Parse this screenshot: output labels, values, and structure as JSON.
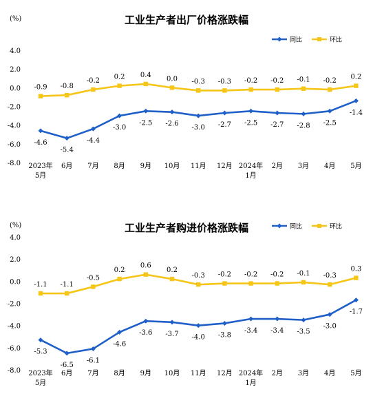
{
  "chart_data": [
    {
      "type": "line",
      "title": "工业生产者出厂价格涨跌幅",
      "unit": "(%)",
      "categories": [
        [
          "2023年",
          "5月"
        ],
        [
          "6月"
        ],
        [
          "7月"
        ],
        [
          "8月"
        ],
        [
          "9月"
        ],
        [
          "10月"
        ],
        [
          "11月"
        ],
        [
          "12月"
        ],
        [
          "2024年",
          "1月"
        ],
        [
          "2月"
        ],
        [
          "3月"
        ],
        [
          "4月"
        ],
        [
          "5月"
        ]
      ],
      "ylim": [
        -8.0,
        4.0
      ],
      "yticks": [
        "4.0",
        "2.0",
        "0.0",
        "-2.0",
        "-4.0",
        "-6.0",
        "-8.0"
      ],
      "legend_position": "top-right",
      "grid": false,
      "series": [
        {
          "name": "同比",
          "color": "#1f5fc8",
          "marker": "diamond",
          "values": [
            -4.6,
            -5.4,
            -4.4,
            -3.0,
            -2.5,
            -2.6,
            -3.0,
            -2.7,
            -2.5,
            -2.7,
            -2.8,
            -2.5,
            -1.4
          ],
          "labels": [
            "-4.6",
            "-5.4",
            "-4.4",
            "-3.0",
            "-2.5",
            "-2.6",
            "-3.0",
            "-2.7",
            "-2.5",
            "-2.7",
            "-2.8",
            "-2.5",
            "-1.4"
          ]
        },
        {
          "name": "环比",
          "color": "#f5c518",
          "marker": "square",
          "values": [
            -0.9,
            -0.8,
            -0.2,
            0.2,
            0.4,
            0.0,
            -0.3,
            -0.3,
            -0.2,
            -0.2,
            -0.1,
            -0.2,
            0.2
          ],
          "labels": [
            "-0.9",
            "-0.8",
            "-0.2",
            "0.2",
            "0.4",
            "0.0",
            "-0.3",
            "-0.3",
            "-0.2",
            "-0.2",
            "-0.1",
            "-0.2",
            "0.2"
          ]
        }
      ]
    },
    {
      "type": "line",
      "title": "工业生产者购进价格涨跌幅",
      "unit": "(%)",
      "categories": [
        [
          "2023年",
          "5月"
        ],
        [
          "6月"
        ],
        [
          "7月"
        ],
        [
          "8月"
        ],
        [
          "9月"
        ],
        [
          "10月"
        ],
        [
          "11月"
        ],
        [
          "12月"
        ],
        [
          "2024年",
          "1月"
        ],
        [
          "2月"
        ],
        [
          "3月"
        ],
        [
          "4月"
        ],
        [
          "5月"
        ]
      ],
      "ylim": [
        -8.0,
        4.0
      ],
      "yticks": [
        "4.0",
        "2.0",
        "0.0",
        "-2.0",
        "-4.0",
        "-6.0",
        "-8.0"
      ],
      "legend_position": "top-right",
      "grid": false,
      "series": [
        {
          "name": "同比",
          "color": "#1f5fc8",
          "marker": "diamond",
          "values": [
            -5.3,
            -6.5,
            -6.1,
            -4.6,
            -3.6,
            -3.7,
            -4.0,
            -3.8,
            -3.4,
            -3.4,
            -3.5,
            -3.0,
            -1.7
          ],
          "labels": [
            "-5.3",
            "-6.5",
            "-6.1",
            "-4.6",
            "-3.6",
            "-3.7",
            "-4.0",
            "-3.8",
            "-3.4",
            "-3.4",
            "-3.5",
            "-3.0",
            "-1.7"
          ]
        },
        {
          "name": "环比",
          "color": "#f5c518",
          "marker": "square",
          "values": [
            -1.1,
            -1.1,
            -0.5,
            0.2,
            0.6,
            0.2,
            -0.3,
            -0.2,
            -0.2,
            -0.2,
            -0.1,
            -0.3,
            0.3
          ],
          "labels": [
            "-1.1",
            "-1.1",
            "-0.5",
            "0.2",
            "0.6",
            "0.2",
            "-0.3",
            "-0.2",
            "-0.2",
            "-0.2",
            "-0.1",
            "-0.3",
            "0.3"
          ]
        }
      ]
    }
  ]
}
